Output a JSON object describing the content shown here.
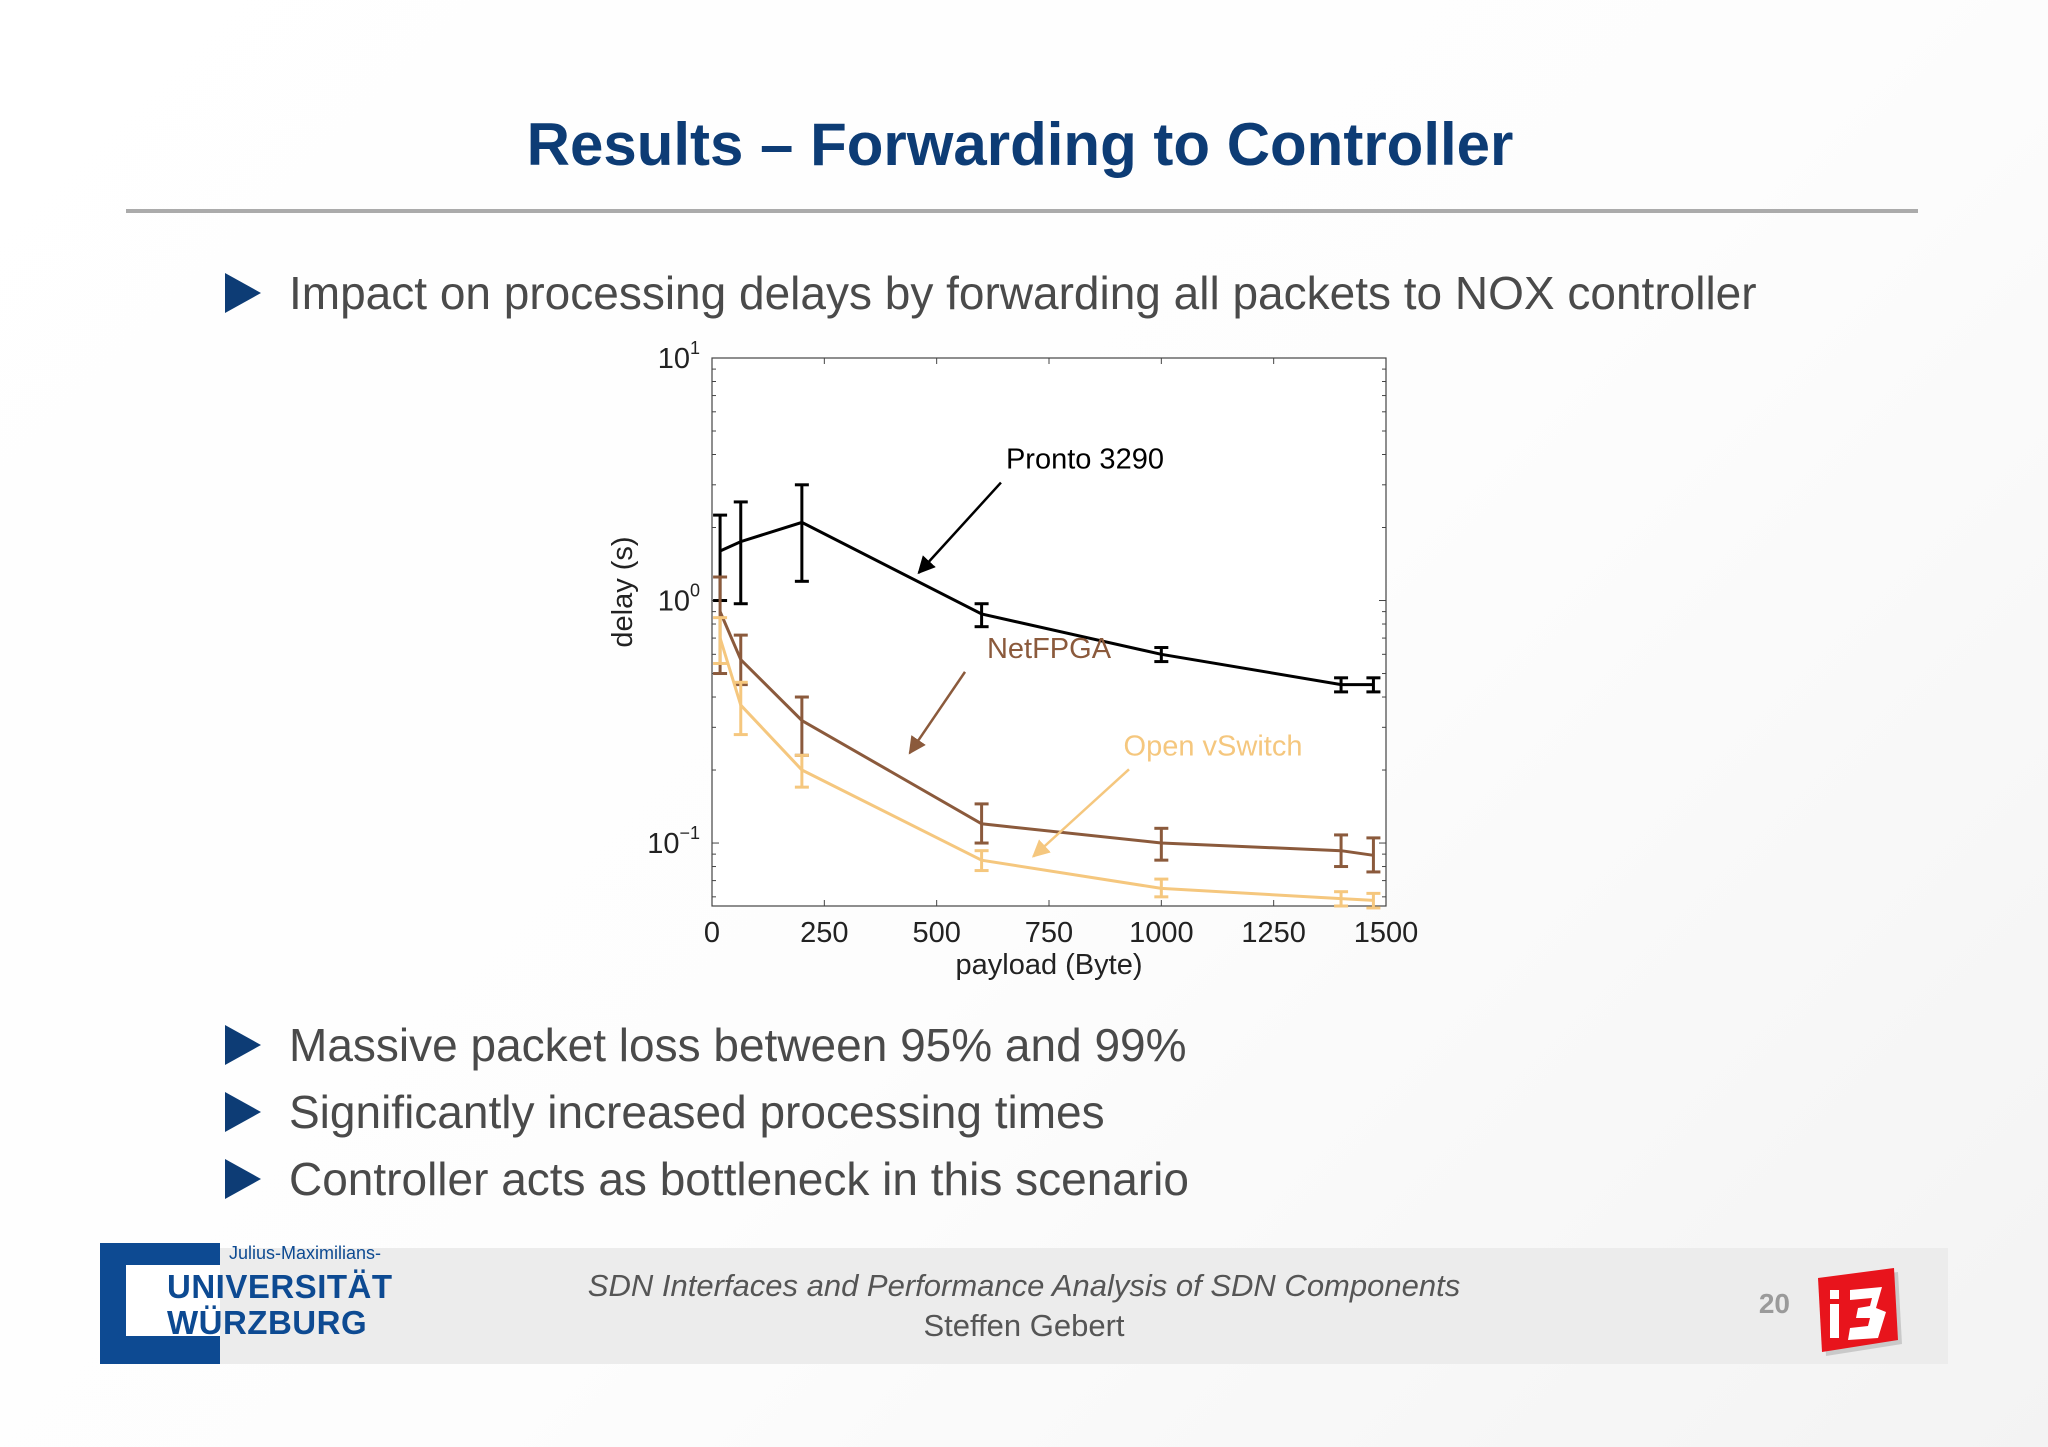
{
  "slide": {
    "title": "Results – Forwarding to Controller",
    "bullets": [
      "Impact on processing delays by forwarding all packets to NOX controller",
      "Massive packet loss between 95% and 99%",
      "Significantly increased processing times",
      "Controller acts as bottleneck in this scenario"
    ],
    "footer": {
      "course": "SDN Interfaces and Performance Analysis of SDN Components",
      "author": "Steffen Gebert",
      "page": "20"
    },
    "logo": {
      "small": "Julius-Maximilians-",
      "line1": "UNIVERSITÄT",
      "line2": "WÜRZBURG"
    },
    "accent_color": "#0d3c75"
  },
  "chart_data": {
    "type": "line",
    "xlabel": "payload (Byte)",
    "ylabel": "delay (s)",
    "xlim": [
      0,
      1500
    ],
    "ylim": [
      0.055,
      10
    ],
    "yscale": "log",
    "xticks": [
      0,
      250,
      500,
      750,
      1000,
      1250,
      1500
    ],
    "yticks": [
      {
        "value": 0.1,
        "base": "10",
        "exp": "−1"
      },
      {
        "value": 1,
        "base": "10",
        "exp": "0"
      },
      {
        "value": 10,
        "base": "10",
        "exp": "1"
      }
    ],
    "grid": false,
    "series": [
      {
        "name": "Pronto 3290",
        "color": "#000000",
        "x": [
          18,
          64,
          200,
          600,
          1000,
          1400,
          1472
        ],
        "y": [
          1.6,
          1.75,
          2.1,
          0.88,
          0.6,
          0.45,
          0.45
        ],
        "err_low": [
          1.0,
          0.97,
          1.2,
          0.78,
          0.56,
          0.42,
          0.42
        ],
        "err_high": [
          2.25,
          2.55,
          3.0,
          0.97,
          0.64,
          0.48,
          0.48
        ]
      },
      {
        "name": "NetFPGA",
        "color": "#8b5a3c",
        "x": [
          18,
          64,
          200,
          600,
          1000,
          1400,
          1472
        ],
        "y": [
          0.9,
          0.57,
          0.32,
          0.12,
          0.1,
          0.093,
          0.089
        ],
        "err_low": [
          0.5,
          0.45,
          0.23,
          0.1,
          0.085,
          0.08,
          0.076
        ],
        "err_high": [
          1.25,
          0.72,
          0.4,
          0.145,
          0.115,
          0.108,
          0.105
        ]
      },
      {
        "name": "Open vSwitch",
        "color": "#f5c77e",
        "x": [
          18,
          64,
          200,
          600,
          1000,
          1400,
          1472
        ],
        "y": [
          0.7,
          0.37,
          0.2,
          0.085,
          0.065,
          0.059,
          0.058
        ],
        "err_low": [
          0.55,
          0.28,
          0.17,
          0.077,
          0.06,
          0.055,
          0.054
        ],
        "err_high": [
          0.85,
          0.46,
          0.23,
          0.093,
          0.071,
          0.063,
          0.062
        ]
      }
    ],
    "annotations": [
      {
        "text": "Pronto 3290",
        "series": 0,
        "label_x": 830,
        "label_y": 3.5,
        "arrow_to_x": 460,
        "arrow_to_y": 1.3
      },
      {
        "text": "NetFPGA",
        "series": 1,
        "label_x": 750,
        "label_y": 0.58,
        "arrow_to_x": 440,
        "arrow_to_y": 0.235
      },
      {
        "text": "Open vSwitch",
        "series": 2,
        "label_x": 1115,
        "label_y": 0.23,
        "arrow_to_x": 715,
        "arrow_to_y": 0.088
      }
    ]
  }
}
